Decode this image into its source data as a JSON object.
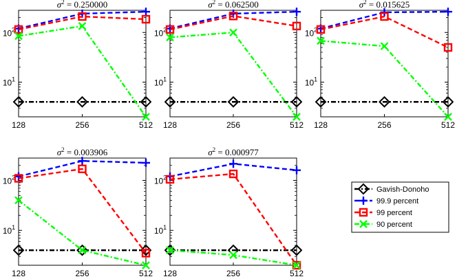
{
  "figure_legend": {
    "placement": "lower-right",
    "entries": [
      {
        "label": "Gavish-Donoho",
        "color": "#000000",
        "marker": "diamond",
        "dash": "dashdot"
      },
      {
        "label": "99.9 percent",
        "color": "#0000ff",
        "marker": "plus",
        "dash": "dashed"
      },
      {
        "label": "99 percent",
        "color": "#ff0000",
        "marker": "square",
        "dash": "dashed"
      },
      {
        "label": "90 percent",
        "color": "#00ff00",
        "marker": "x",
        "dash": "dashdot"
      }
    ]
  },
  "chart_data": [
    {
      "type": "line",
      "title_sym": "σ",
      "title_sup": "2",
      "title_value": " = 0.250000",
      "x": [
        128,
        256,
        512
      ],
      "x_tick_labels": [
        "128",
        "256",
        "512"
      ],
      "y_scale": "log",
      "ylim": [
        2,
        280
      ],
      "y_ticks": [
        {
          "base": "10",
          "exp": "1",
          "value": 10
        },
        {
          "base": "10",
          "exp": "2",
          "value": 100
        }
      ],
      "grid": false,
      "series": [
        {
          "name": "Gavish-Donoho",
          "values": [
            4,
            4,
            4
          ]
        },
        {
          "name": "99.9 percent",
          "values": [
            120,
            240,
            262
          ]
        },
        {
          "name": "99 percent",
          "values": [
            115,
            210,
            185
          ]
        },
        {
          "name": "90 percent",
          "values": [
            85,
            135,
            2
          ]
        }
      ]
    },
    {
      "type": "line",
      "title_sym": "σ",
      "title_sup": "2",
      "title_value": " = 0.062500",
      "x": [
        128,
        256,
        512
      ],
      "x_tick_labels": [
        "128",
        "256",
        "512"
      ],
      "y_scale": "log",
      "ylim": [
        2,
        280
      ],
      "y_ticks": [
        {
          "base": "10",
          "exp": "1",
          "value": 10
        },
        {
          "base": "10",
          "exp": "2",
          "value": 100
        }
      ],
      "grid": false,
      "series": [
        {
          "name": "Gavish-Donoho",
          "values": [
            4,
            4,
            4
          ]
        },
        {
          "name": "99.9 percent",
          "values": [
            120,
            240,
            262
          ]
        },
        {
          "name": "99 percent",
          "values": [
            115,
            215,
            135
          ]
        },
        {
          "name": "90 percent",
          "values": [
            80,
            100,
            2
          ]
        }
      ]
    },
    {
      "type": "line",
      "title_sym": "σ",
      "title_sup": "2",
      "title_value": " = 0.015625",
      "x": [
        128,
        256,
        512
      ],
      "x_tick_labels": [
        "128",
        "256",
        "512"
      ],
      "y_scale": "log",
      "ylim": [
        2,
        280
      ],
      "y_ticks": [
        {
          "base": "10",
          "exp": "1",
          "value": 10
        },
        {
          "base": "10",
          "exp": "2",
          "value": 100
        }
      ],
      "grid": false,
      "series": [
        {
          "name": "Gavish-Donoho",
          "values": [
            4,
            4,
            4
          ]
        },
        {
          "name": "99.9 percent",
          "values": [
            120,
            255,
            262
          ]
        },
        {
          "name": "99 percent",
          "values": [
            115,
            210,
            50
          ]
        },
        {
          "name": "90 percent",
          "values": [
            68,
            53,
            2
          ]
        }
      ]
    },
    {
      "type": "line",
      "title_sym": "σ",
      "title_sup": "2",
      "title_value": " = 0.003906",
      "x": [
        128,
        256,
        512
      ],
      "x_tick_labels": [
        "128",
        "256",
        "512"
      ],
      "y_scale": "log",
      "ylim": [
        2,
        280
      ],
      "y_ticks": [
        {
          "base": "10",
          "exp": "1",
          "value": 10
        },
        {
          "base": "10",
          "exp": "2",
          "value": 100
        }
      ],
      "grid": false,
      "series": [
        {
          "name": "Gavish-Donoho",
          "values": [
            4,
            4,
            4
          ]
        },
        {
          "name": "99.9 percent",
          "values": [
            120,
            245,
            225
          ]
        },
        {
          "name": "99 percent",
          "values": [
            110,
            170,
            3.5
          ]
        },
        {
          "name": "90 percent",
          "values": [
            40,
            4,
            2
          ]
        }
      ]
    },
    {
      "type": "line",
      "title_sym": "σ",
      "title_sup": "2",
      "title_value": " = 0.000977",
      "x": [
        128,
        256,
        512
      ],
      "x_tick_labels": [
        "128",
        "256",
        "512"
      ],
      "y_scale": "log",
      "ylim": [
        2,
        280
      ],
      "y_ticks": [
        {
          "base": "10",
          "exp": "1",
          "value": 10
        },
        {
          "base": "10",
          "exp": "2",
          "value": 100
        }
      ],
      "grid": false,
      "series": [
        {
          "name": "Gavish-Donoho",
          "values": [
            4,
            4,
            4
          ]
        },
        {
          "name": "99.9 percent",
          "values": [
            120,
            215,
            160
          ]
        },
        {
          "name": "99 percent",
          "values": [
            105,
            135,
            2
          ]
        },
        {
          "name": "90 percent",
          "values": [
            4,
            3.2,
            2
          ]
        }
      ]
    }
  ]
}
